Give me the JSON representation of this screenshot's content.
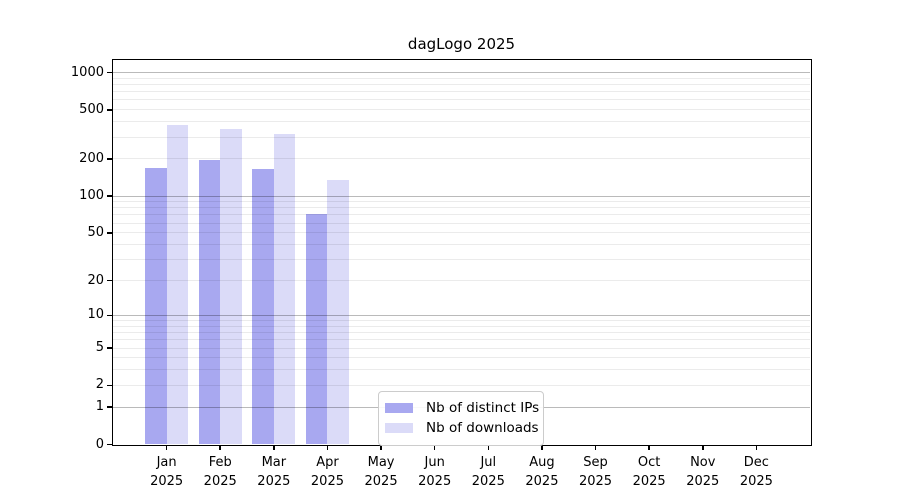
{
  "title": "dagLogo 2025",
  "chart_data": {
    "type": "bar",
    "title": "dagLogo 2025",
    "months": [
      "Jan",
      "Feb",
      "Mar",
      "Apr",
      "May",
      "Jun",
      "Jul",
      "Aug",
      "Sep",
      "Oct",
      "Nov",
      "Dec"
    ],
    "year": "2025",
    "categories": [
      "Jan 2025",
      "Feb 2025",
      "Mar 2025",
      "Apr 2025",
      "May 2025",
      "Jun 2025",
      "Jul 2025",
      "Aug 2025",
      "Sep 2025",
      "Oct 2025",
      "Nov 2025",
      "Dec 2025"
    ],
    "series": [
      {
        "name": "Nb of distinct IPs",
        "color": "#a8a8f0",
        "values": [
          167,
          194,
          164,
          70,
          null,
          null,
          null,
          null,
          null,
          null,
          null,
          null
        ]
      },
      {
        "name": "Nb of downloads",
        "color": "#dbdbf8",
        "values": [
          375,
          345,
          315,
          133,
          null,
          null,
          null,
          null,
          null,
          null,
          null,
          null
        ]
      }
    ],
    "yscale": "log1p",
    "yticks": [
      0,
      1,
      2,
      5,
      10,
      20,
      50,
      100,
      200,
      500,
      1000
    ],
    "ylim": [
      0,
      1250
    ],
    "grid": "on",
    "legend_position": "inside-bottom-center"
  },
  "legend": {
    "items": [
      {
        "label": "Nb of distinct IPs",
        "color": "#a8a8f0"
      },
      {
        "label": "Nb of downloads",
        "color": "#dbdbf8"
      }
    ]
  }
}
